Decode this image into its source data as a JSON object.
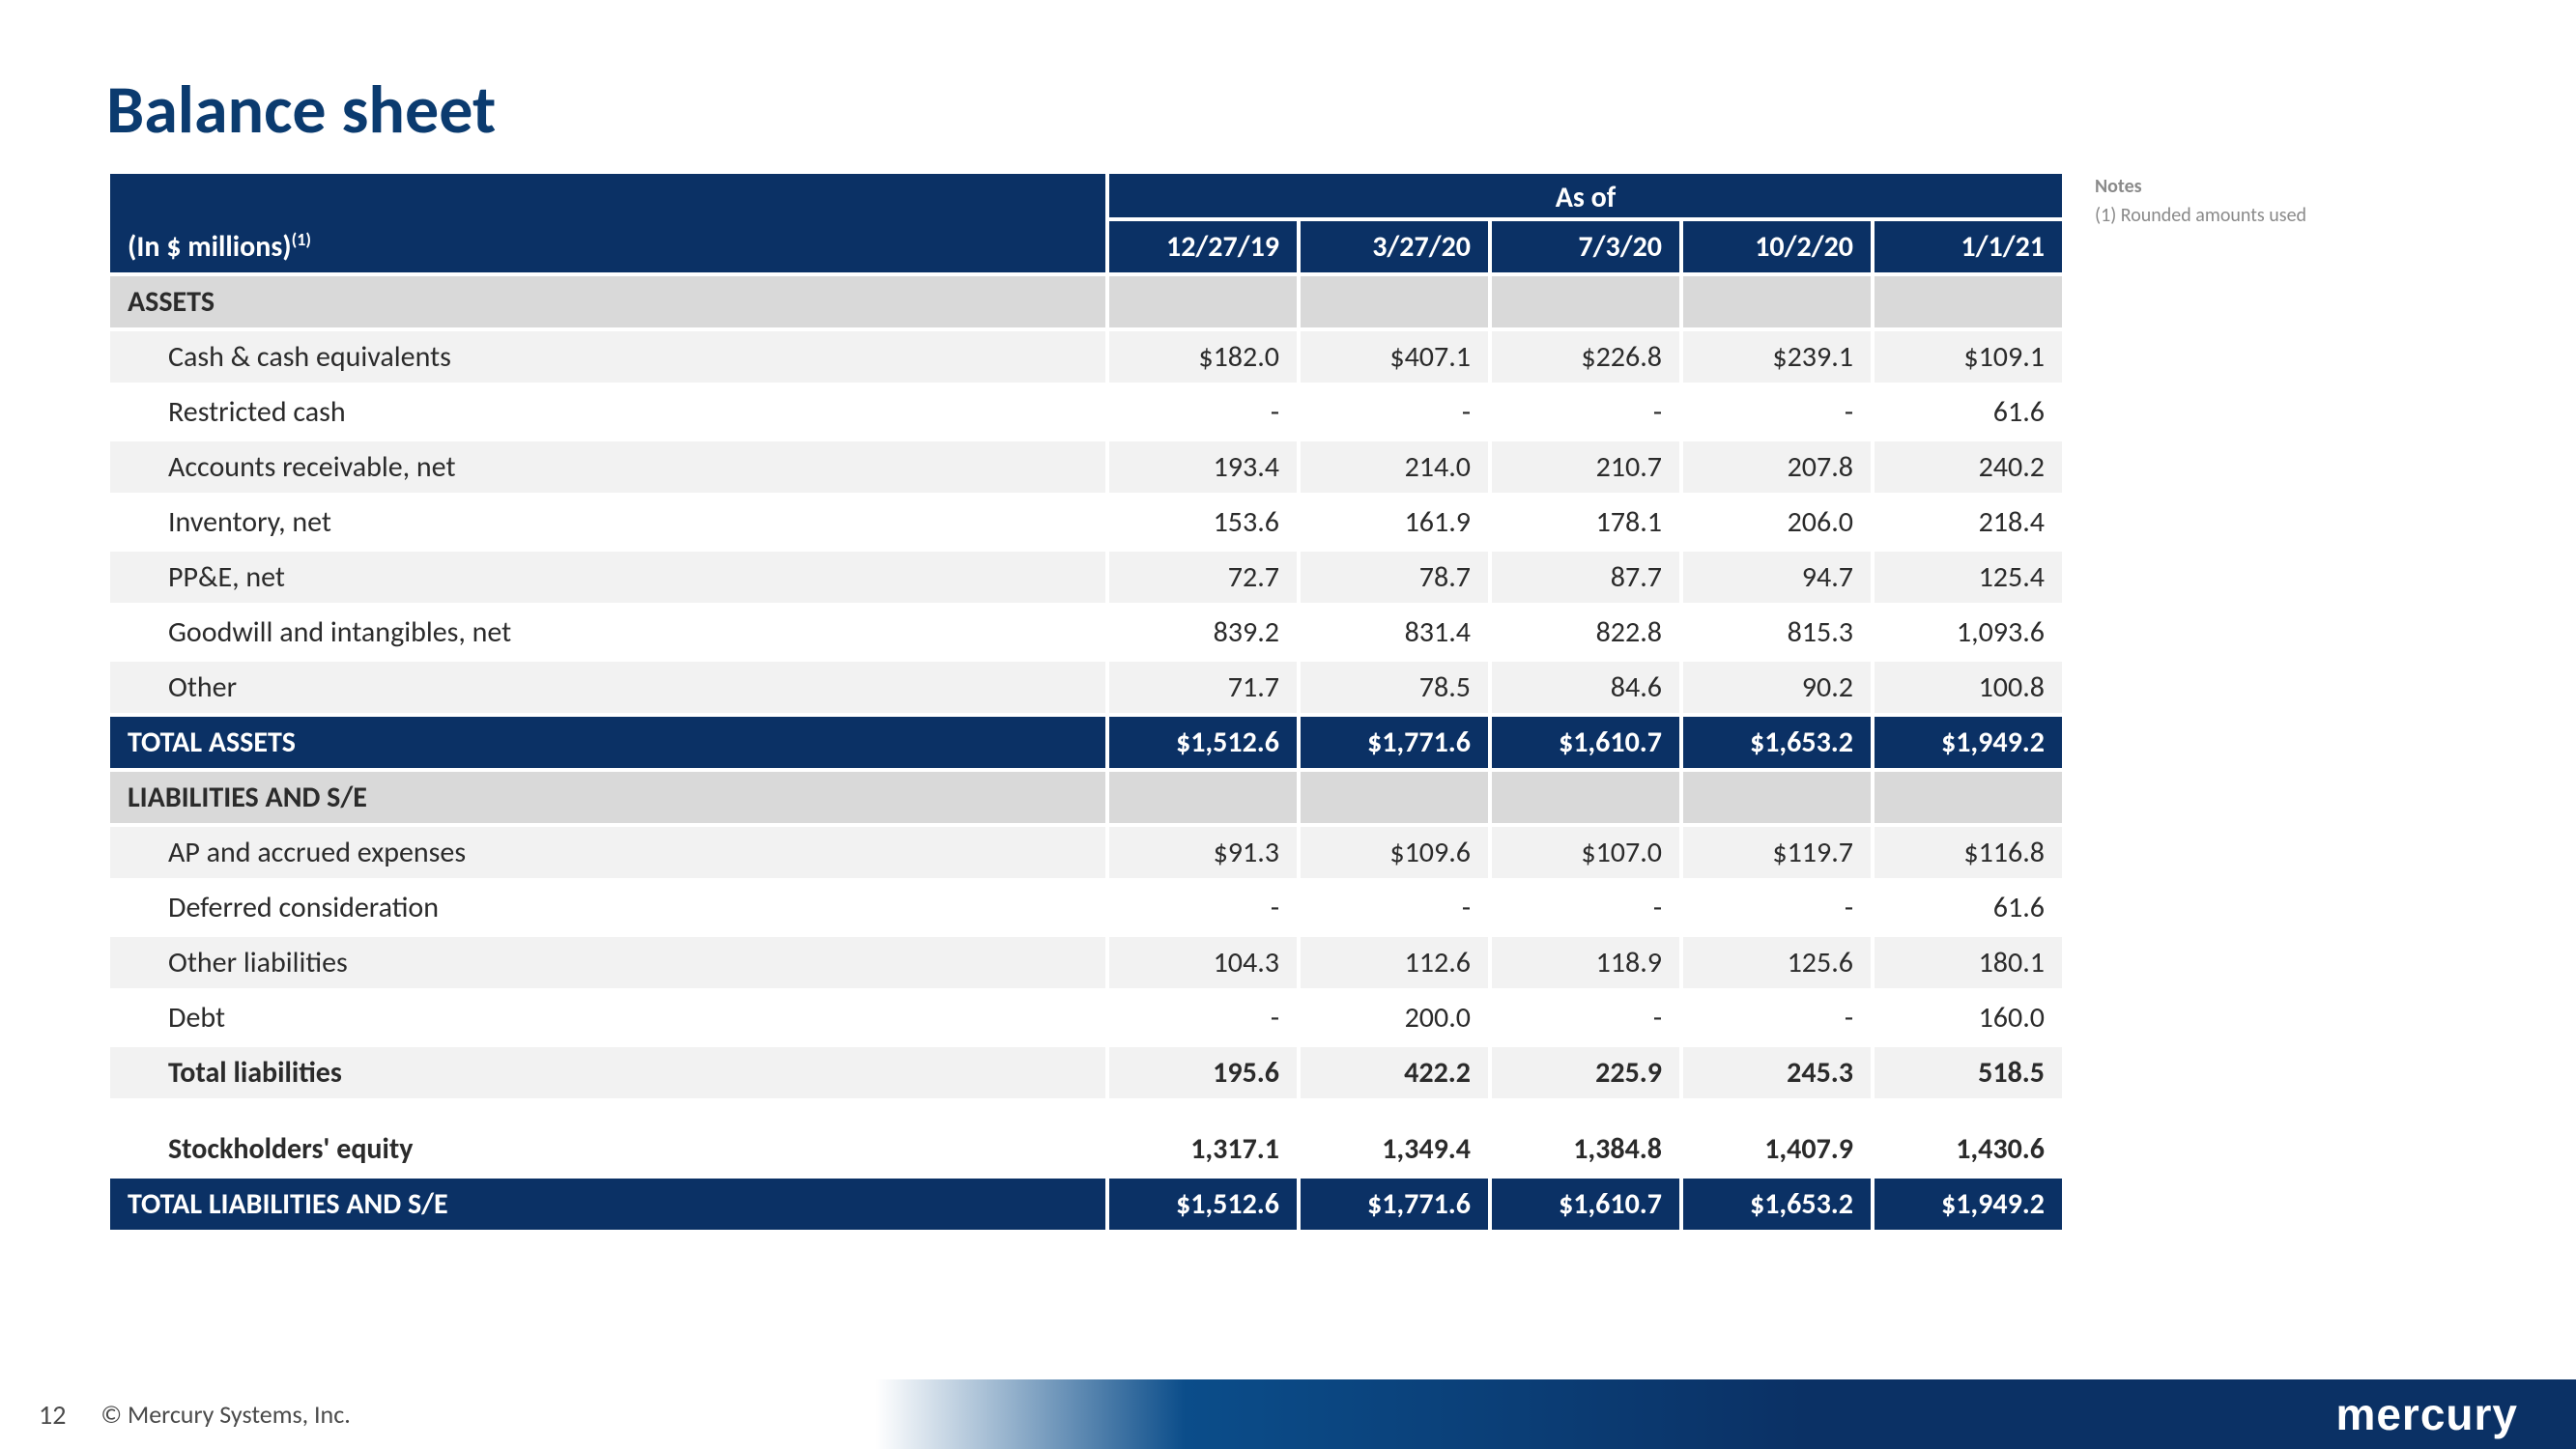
{
  "title": "Balance sheet",
  "table": {
    "units_label": "(In $ millions)",
    "units_super": "(1)",
    "asof_label": "As of",
    "dates": [
      "12/27/19",
      "3/27/20",
      "7/3/20",
      "10/2/20",
      "1/1/21"
    ],
    "colors": {
      "header_bg": "#0b3165",
      "header_fg": "#ffffff",
      "section_bg": "#d9d9d9",
      "row_odd_bg": "#f2f2f2",
      "row_even_bg": "#ffffff",
      "text": "#2b2b2b"
    },
    "sections": [
      {
        "label": "ASSETS",
        "rows": [
          {
            "label": "Cash & cash equivalents",
            "values": [
              "$182.0",
              "$407.1",
              "$226.8",
              "$239.1",
              "$109.1"
            ]
          },
          {
            "label": "Restricted cash",
            "values": [
              "-",
              "-",
              "-",
              "-",
              "61.6"
            ]
          },
          {
            "label": "Accounts receivable, net",
            "values": [
              "193.4",
              "214.0",
              "210.7",
              "207.8",
              "240.2"
            ]
          },
          {
            "label": "Inventory, net",
            "values": [
              "153.6",
              "161.9",
              "178.1",
              "206.0",
              "218.4"
            ]
          },
          {
            "label": "PP&E, net",
            "values": [
              "72.7",
              "78.7",
              "87.7",
              "94.7",
              "125.4"
            ]
          },
          {
            "label": "Goodwill and intangibles, net",
            "values": [
              "839.2",
              "831.4",
              "822.8",
              "815.3",
              "1,093.6"
            ]
          },
          {
            "label": "Other",
            "values": [
              "71.7",
              "78.5",
              "84.6",
              "90.2",
              "100.8"
            ]
          }
        ],
        "total": {
          "label": "TOTAL ASSETS",
          "values": [
            "$1,512.6",
            "$1,771.6",
            "$1,610.7",
            "$1,653.2",
            "$1,949.2"
          ]
        }
      },
      {
        "label": "LIABILITIES AND S/E",
        "rows": [
          {
            "label": "AP and accrued expenses",
            "values": [
              "$91.3",
              "$109.6",
              "$107.0",
              "$119.7",
              "$116.8"
            ]
          },
          {
            "label": "Deferred consideration",
            "values": [
              "-",
              "-",
              "-",
              "-",
              "61.6"
            ]
          },
          {
            "label": "Other liabilities",
            "values": [
              "104.3",
              "112.6",
              "118.9",
              "125.6",
              "180.1"
            ]
          },
          {
            "label": "Debt",
            "values": [
              "-",
              "200.0",
              "-",
              "-",
              "160.0"
            ]
          },
          {
            "label": "Total liabilities",
            "values": [
              "195.6",
              "422.2",
              "225.9",
              "245.3",
              "518.5"
            ],
            "bold": true
          }
        ]
      },
      {
        "spacer_before": true,
        "rows": [
          {
            "label": "Stockholders' equity",
            "values": [
              "1,317.1",
              "1,349.4",
              "1,384.8",
              "1,407.9",
              "1,430.6"
            ],
            "bold": true
          }
        ],
        "total": {
          "label": "TOTAL LIABILITIES AND S/E",
          "values": [
            "$1,512.6",
            "$1,771.6",
            "$1,610.7",
            "$1,653.2",
            "$1,949.2"
          ]
        }
      }
    ]
  },
  "notes": {
    "title": "Notes",
    "items": [
      "(1)   Rounded amounts used"
    ]
  },
  "footer": {
    "page": "12",
    "copyright": "© Mercury Systems, Inc.",
    "brand": "mercury"
  }
}
